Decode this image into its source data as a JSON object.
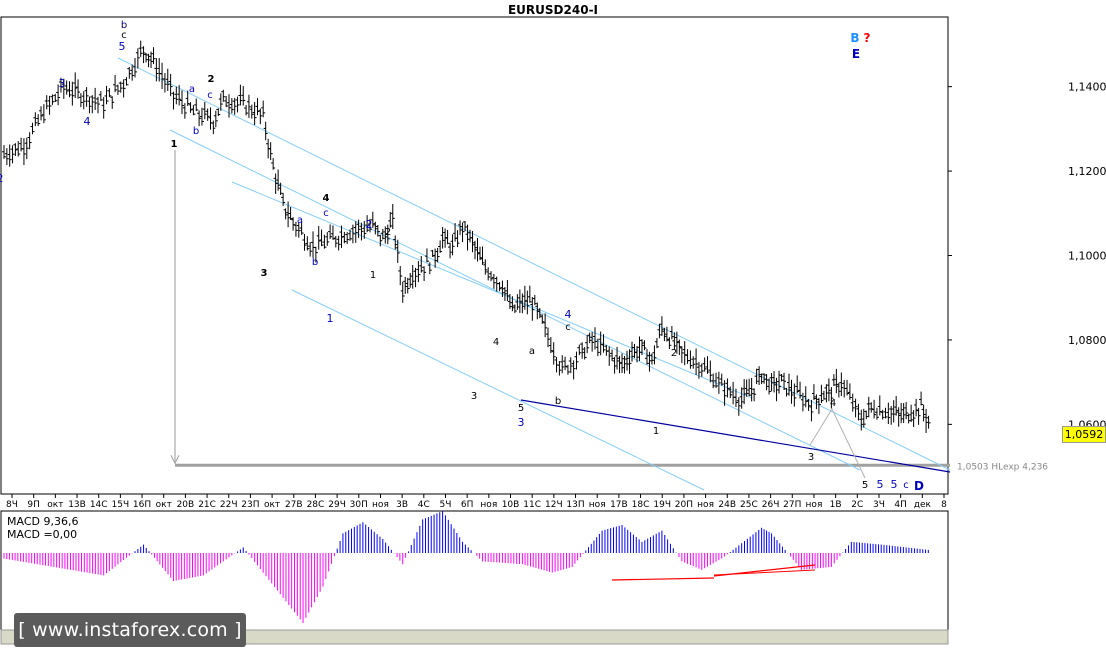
{
  "chart_data": {
    "type": "candlestick",
    "symbol": "EURUSD240-I",
    "title": "EURUSD240-I",
    "y_tick_labels": [
      "1,1400",
      "1,1200",
      "1,1000",
      "1,0800",
      "1,0600"
    ],
    "y_ticks": [
      1.14,
      1.12,
      1.1,
      1.08,
      1.06
    ],
    "ylim": [
      1.0435,
      1.1565
    ],
    "current_price_label": "1,0592",
    "current_price": 1.0592,
    "x_tick_labels": [
      "8Ч",
      "9П",
      "окт",
      "13В",
      "14С",
      "15Ч",
      "16П",
      "окт",
      "20В",
      "21С",
      "22Ч",
      "23П",
      "окт",
      "27В",
      "28С",
      "29Ч",
      "30П",
      "ноя",
      "3В",
      "4С",
      "5Ч",
      "6П",
      "ноя",
      "10В",
      "11С",
      "12Ч",
      "13П",
      "ноя",
      "17В",
      "18С",
      "19Ч",
      "20П",
      "ноя",
      "24В",
      "25С",
      "26Ч",
      "27П",
      "ноя",
      "1В",
      "2С",
      "3Ч",
      "4П",
      "дек",
      "8"
    ],
    "target_level": 1.0503,
    "target_label": "1,0503 НLexp 4,236",
    "price_path": [
      [
        0,
        1.124
      ],
      [
        2,
        1.126
      ],
      [
        4,
        1.134
      ],
      [
        6,
        1.14
      ],
      [
        8,
        1.138
      ],
      [
        10,
        1.136
      ],
      [
        12,
        1.141
      ],
      [
        14,
        1.149
      ],
      [
        15,
        1.146
      ],
      [
        17,
        1.138
      ],
      [
        19,
        1.134
      ],
      [
        21,
        1.132
      ],
      [
        22,
        1.137
      ],
      [
        24,
        1.136
      ],
      [
        26,
        1.133
      ],
      [
        27,
        1.121
      ],
      [
        28,
        1.112
      ],
      [
        29,
        1.108
      ],
      [
        31,
        1.102
      ],
      [
        33,
        1.104
      ],
      [
        35,
        1.106
      ],
      [
        37,
        1.107
      ],
      [
        38,
        1.104
      ],
      [
        39,
        1.108
      ],
      [
        40,
        1.092
      ],
      [
        41,
        1.096
      ],
      [
        43,
        1.099
      ],
      [
        44,
        1.104
      ],
      [
        45,
        1.102
      ],
      [
        46,
        1.107
      ],
      [
        47,
        1.103
      ],
      [
        48,
        1.098
      ],
      [
        50,
        1.093
      ],
      [
        51,
        1.087
      ],
      [
        52,
        1.089
      ],
      [
        53,
        1.089
      ],
      [
        54,
        1.084
      ],
      [
        56,
        1.073
      ],
      [
        58,
        1.077
      ],
      [
        59,
        1.08
      ],
      [
        61,
        1.076
      ],
      [
        62,
        1.074
      ],
      [
        63,
        1.077
      ],
      [
        64,
        1.078
      ],
      [
        65,
        1.075
      ],
      [
        66,
        1.083
      ],
      [
        67,
        1.08
      ],
      [
        68,
        1.077
      ],
      [
        70,
        1.074
      ],
      [
        72,
        1.069
      ],
      [
        74,
        1.066
      ],
      [
        75,
        1.068
      ],
      [
        76,
        1.072
      ],
      [
        77,
        1.069
      ],
      [
        78,
        1.07
      ],
      [
        79,
        1.068
      ],
      [
        81,
        1.065
      ],
      [
        82,
        1.067
      ],
      [
        83,
        1.068
      ],
      [
        84,
        1.07
      ],
      [
        86,
        1.061
      ],
      [
        87,
        1.064
      ],
      [
        89,
        1.063
      ],
      [
        90,
        1.062
      ],
      [
        91,
        1.063
      ],
      [
        92,
        1.064
      ],
      [
        93,
        1.06
      ]
    ],
    "macd_label": "MACD 9,36,6",
    "macd_value_label": "MACD =0,00",
    "macd_histogram": [
      [
        0,
        -0.2
      ],
      [
        5,
        -0.5
      ],
      [
        10,
        -0.8
      ],
      [
        14,
        0.3
      ],
      [
        17,
        -1.0
      ],
      [
        20,
        -0.8
      ],
      [
        24,
        0.2
      ],
      [
        28,
        -1.6
      ],
      [
        30,
        -2.5
      ],
      [
        32,
        -1.2
      ],
      [
        34,
        0.7
      ],
      [
        36,
        1.1
      ],
      [
        38,
        0.5
      ],
      [
        40,
        -0.4
      ],
      [
        42,
        1.2
      ],
      [
        44,
        1.5
      ],
      [
        46,
        0.4
      ],
      [
        48,
        -0.3
      ],
      [
        52,
        -0.4
      ],
      [
        55,
        -0.7
      ],
      [
        57,
        -0.5
      ],
      [
        60,
        0.8
      ],
      [
        62,
        1.0
      ],
      [
        64,
        0.4
      ],
      [
        66,
        0.8
      ],
      [
        68,
        -0.3
      ],
      [
        70,
        -0.6
      ],
      [
        72,
        -0.2
      ],
      [
        76,
        0.9
      ],
      [
        77,
        0.7
      ],
      [
        80,
        -0.6
      ],
      [
        83,
        -0.5
      ],
      [
        85,
        0.4
      ],
      [
        88,
        0.3
      ],
      [
        93,
        0.1
      ]
    ],
    "wave_labels": [
      {
        "text": "b",
        "color": "#000080"
      },
      {
        "text": "c",
        "color": "#000000"
      },
      {
        "text": "5",
        "color": "#0000c0"
      },
      {
        "text": "2",
        "color": "#000000"
      },
      {
        "text": "a",
        "color": "#0000c0"
      },
      {
        "text": "c",
        "color": "#0000c0"
      },
      {
        "text": "b",
        "color": "#0000c0"
      },
      {
        "text": "1",
        "color": "#000000"
      },
      {
        "text": "3",
        "color": "#0000c0"
      },
      {
        "text": "4",
        "color": "#0000c0"
      },
      {
        "text": "2",
        "color": "#0000c0"
      },
      {
        "text": "4",
        "color": "#000000"
      },
      {
        "text": "a",
        "color": "#0000c0"
      },
      {
        "text": "c",
        "color": "#0000c0"
      },
      {
        "text": "b",
        "color": "#0000c0"
      },
      {
        "text": "3",
        "color": "#000000"
      },
      {
        "text": "2",
        "color": "#0000c0"
      },
      {
        "text": "2",
        "color": "#000000"
      },
      {
        "text": "1",
        "color": "#000000"
      },
      {
        "text": "1",
        "color": "#0000c0"
      },
      {
        "text": "4",
        "color": "#000000"
      },
      {
        "text": "a",
        "color": "#000000"
      },
      {
        "text": "3",
        "color": "#000000"
      },
      {
        "text": "5",
        "color": "#000000"
      },
      {
        "text": "3",
        "color": "#0000c0"
      },
      {
        "text": "b",
        "color": "#000000"
      },
      {
        "text": "4",
        "color": "#0000c0"
      },
      {
        "text": "c",
        "color": "#000000"
      },
      {
        "text": "2",
        "color": "#000000"
      },
      {
        "text": "1",
        "color": "#000000"
      },
      {
        "text": "4",
        "color": "#000000"
      },
      {
        "text": "3",
        "color": "#000000"
      },
      {
        "text": "5",
        "color": "#000000"
      },
      {
        "text": "5",
        "color": "#0000c0"
      },
      {
        "text": "5",
        "color": "#0000c0"
      },
      {
        "text": "c",
        "color": "#0000c0"
      },
      {
        "text": "D",
        "color": "#0000c0"
      },
      {
        "text": "B",
        "color": "#1e90ff"
      },
      {
        "text": "?",
        "color": "#ff0000"
      },
      {
        "text": "E",
        "color": "#0000c0"
      }
    ]
  },
  "watermark": "[ www.instaforex.com ]",
  "colors": {
    "grid": "#c8c8c8",
    "candle": "#000000",
    "channel": "#87cefa",
    "macd_pos": "#0000ff",
    "macd_neg": "#ff00ff",
    "trend": "#0000a0",
    "signal": "#ff0000",
    "target_line": "#a0a0a0"
  }
}
